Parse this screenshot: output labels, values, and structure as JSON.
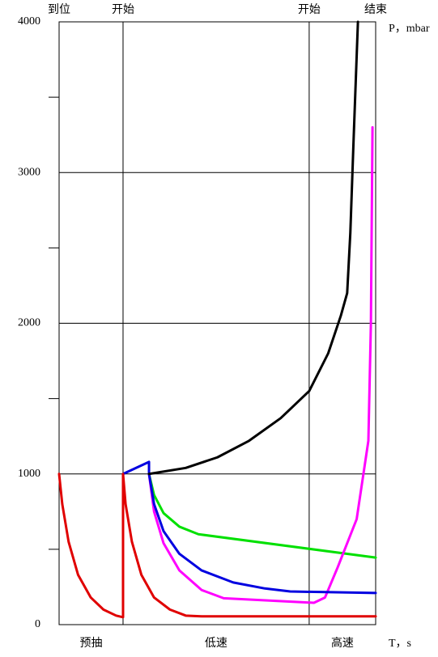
{
  "chart_data": {
    "type": "line",
    "x_label": "T，s",
    "y_label": "P，mbar",
    "xlim": [
      0,
      10
    ],
    "ylim": [
      0,
      4000
    ],
    "yticks": [
      0,
      1000,
      2000,
      3000,
      4000
    ],
    "yminor": [
      500,
      1500,
      2500,
      3500
    ],
    "markers": [
      {
        "x": 0,
        "label": "到位"
      },
      {
        "x": 2.02,
        "label": "开始"
      },
      {
        "x": 7.9,
        "label": "开始"
      },
      {
        "x": 10,
        "label": "结束"
      }
    ],
    "phases": [
      "预抽",
      "低速",
      "高速"
    ],
    "grid": true,
    "series": [
      {
        "color": "#00e000",
        "x": [
          2.84,
          3.0,
          3.3,
          3.8,
          4.4,
          10
        ],
        "values": [
          1000,
          860,
          740,
          650,
          600,
          445
        ]
      },
      {
        "color": "#ff00ff",
        "x": [
          2.84,
          3.0,
          3.3,
          3.8,
          4.5,
          5.2,
          8.05,
          8.4,
          8.8,
          9.4,
          9.77,
          9.85,
          9.9
        ],
        "values": [
          1000,
          750,
          540,
          360,
          230,
          175,
          145,
          180,
          380,
          700,
          1220,
          2000,
          3300
        ]
      },
      {
        "color": "#0000e0",
        "x": [
          2.02,
          2.84,
          2.84,
          3.0,
          3.3,
          3.8,
          4.5,
          5.5,
          6.5,
          7.3,
          10
        ],
        "values": [
          1000,
          1080,
          1000,
          800,
          620,
          470,
          360,
          280,
          240,
          220,
          210
        ]
      },
      {
        "color": "#000000",
        "x": [
          2.84,
          4,
          5,
          6,
          7,
          7.9,
          8.5,
          8.9,
          9.1,
          9.2,
          9.3,
          9.44
        ],
        "values": [
          1000,
          1040,
          1110,
          1220,
          1370,
          1550,
          1800,
          2050,
          2200,
          2600,
          3200,
          4000
        ]
      },
      {
        "color": "#e00000",
        "x": [
          0,
          0.1,
          0.3,
          0.6,
          1.0,
          1.4,
          1.8,
          2.0,
          2.02,
          2.02,
          2.1,
          2.3,
          2.6,
          3.0,
          3.5,
          4.0,
          4.5,
          10
        ],
        "values": [
          1000,
          800,
          550,
          330,
          180,
          100,
          60,
          50,
          50,
          1000,
          800,
          550,
          330,
          180,
          100,
          60,
          55,
          55
        ]
      }
    ]
  }
}
